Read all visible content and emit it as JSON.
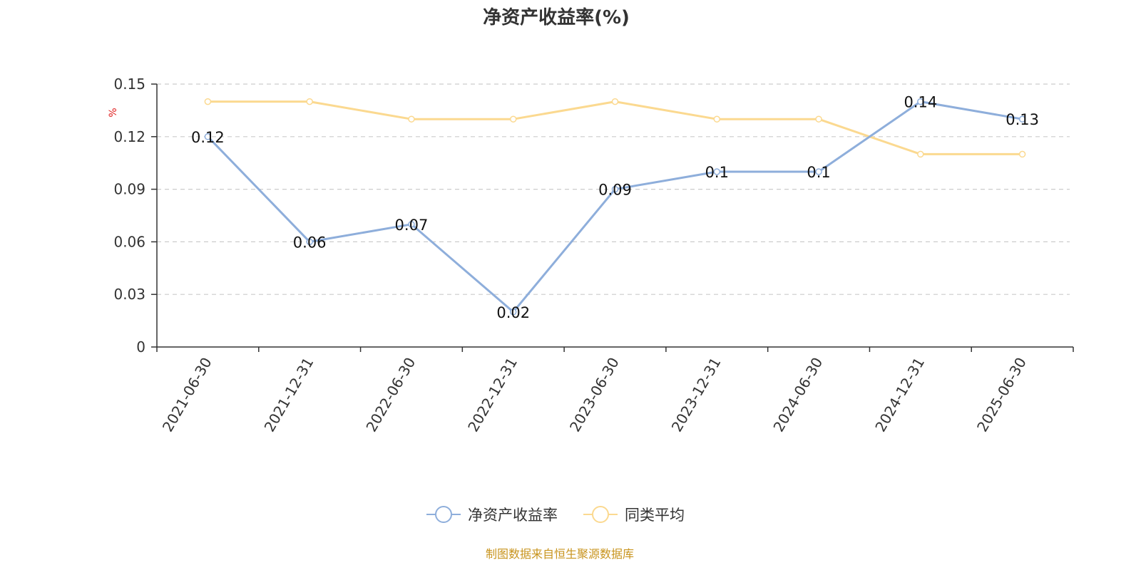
{
  "chart_data": {
    "type": "line",
    "title": "净资产收益率(%)",
    "ylabel": "%",
    "xlabel": "",
    "ylim": [
      0,
      0.15
    ],
    "yticks": [
      0,
      0.03,
      0.06,
      0.09,
      0.12,
      0.15
    ],
    "ytick_labels": [
      "0",
      "0.03",
      "0.06",
      "0.09",
      "0.12",
      "0.15"
    ],
    "grid": true,
    "legend_position": "bottom-center",
    "categories": [
      "2021-06-30",
      "2021-12-31",
      "2022-06-30",
      "2022-12-31",
      "2023-06-30",
      "2023-12-31",
      "2024-06-30",
      "2024-12-31",
      "2025-06-30"
    ],
    "series": [
      {
        "name": "净资产收益率",
        "color": "#8eaedb",
        "values": [
          0.12,
          0.06,
          0.07,
          0.02,
          0.09,
          0.1,
          0.1,
          0.14,
          0.13
        ],
        "data_labels": [
          "0.12",
          "0.06",
          "0.07",
          "0.02",
          "0.09",
          "0.1",
          "0.1",
          "0.14",
          "0.13"
        ]
      },
      {
        "name": "同类平均",
        "color": "#fbd990",
        "values": [
          0.14,
          0.14,
          0.13,
          0.13,
          0.14,
          0.13,
          0.13,
          0.11,
          0.11
        ]
      }
    ]
  },
  "source_note": "制图数据来自恒生聚源数据库"
}
